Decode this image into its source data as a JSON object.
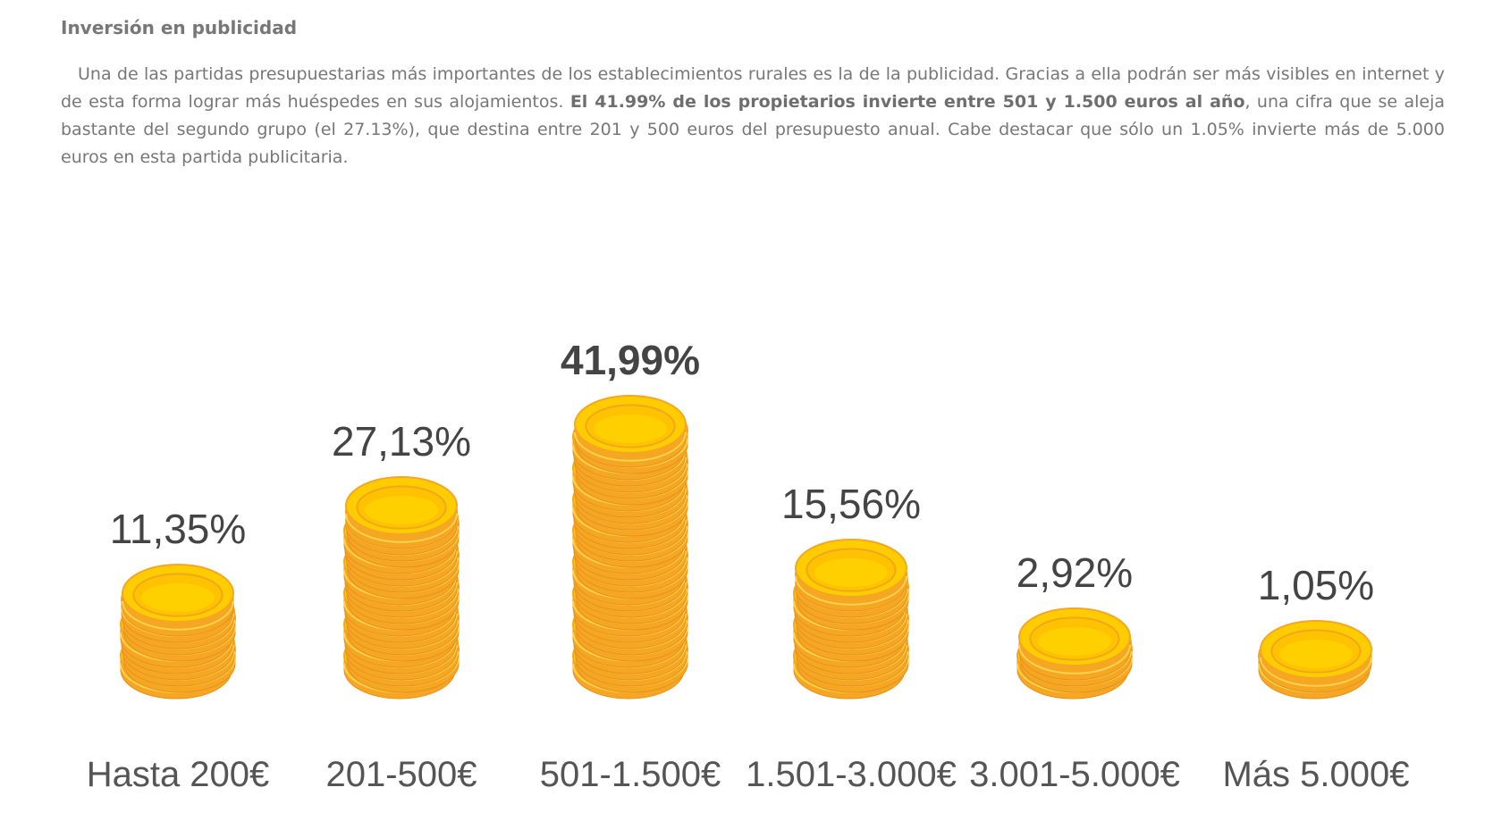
{
  "article": {
    "heading": "Inversión en publicidad",
    "paragraph_1": "Una de las partidas presupuestarias más importantes de los establecimientos rurales es la de la publicidad. Gracias a ella podrán ser más visibles en internet y de esta forma lograr más huéspedes en sus alojamientos. ",
    "paragraph_bold": "El 41.99% de los propietarios invierte entre 501 y 1.500 euros al año",
    "paragraph_2": ", una cifra que se aleja bastante del segundo grupo (el 27.13%), que destina entre 201 y 500 euros del presupuesto anual. Cabe destacar que sólo un 1.05% invierte más de 5.000 euros en esta partida publicitaria."
  },
  "chart_data": {
    "type": "bar",
    "categories": [
      "Hasta 200€",
      "201-500€",
      "501-1.500€",
      "1.501-3.000€",
      "3.001-5.000€",
      "Más 5.000€"
    ],
    "values": [
      11.35,
      27.13,
      41.99,
      15.56,
      2.92,
      1.05
    ],
    "value_labels": [
      "11,35%",
      "27,13%",
      "41,99%",
      "15,56%",
      "2,92%",
      "1,05%"
    ],
    "highlight_index": 2,
    "bar_style": "coin-stack",
    "colors": {
      "coin_top": "#FFCC00",
      "coin_top_inner": "#FFC200",
      "coin_edge": "#F5A623",
      "coin_edge_dark": "#E8921E",
      "value_text": "#444444",
      "category_text": "#555555"
    }
  }
}
